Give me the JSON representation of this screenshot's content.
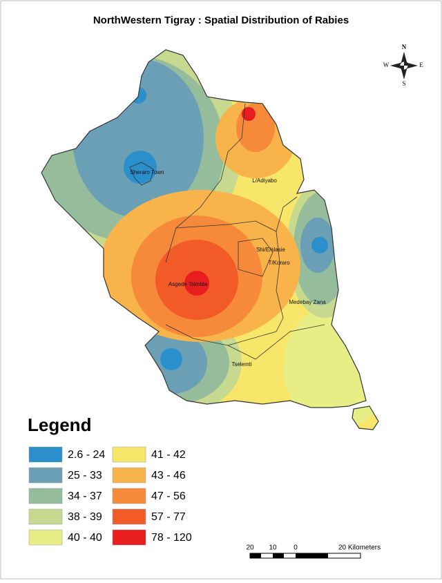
{
  "title": "NorthWestern Tigray : Spatial Distribution of Rabies",
  "compass": {
    "n": "N",
    "e": "E",
    "s": "S",
    "w": "W"
  },
  "places": [
    {
      "label": "Sheraro Town"
    },
    {
      "label": "L/Adiyabo"
    },
    {
      "label": "Shi/E/slasie"
    },
    {
      "label": "T/Koraro"
    },
    {
      "label": "Asgede Tsimbla"
    },
    {
      "label": "Medebay Zana"
    },
    {
      "label": "Tselemti"
    }
  ],
  "legend": {
    "title": "Legend",
    "items": [
      {
        "label": "2.6 - 24",
        "color": "#2b8fcc"
      },
      {
        "label": "25 - 33",
        "color": "#6b9fb5"
      },
      {
        "label": "34 - 37",
        "color": "#95bd9c"
      },
      {
        "label": "38 - 39",
        "color": "#c6d98f"
      },
      {
        "label": "40 - 40",
        "color": "#e6ee85"
      },
      {
        "label": "41 - 42",
        "color": "#f7e66a"
      },
      {
        "label": "43 - 46",
        "color": "#f8b34a"
      },
      {
        "label": "47 - 56",
        "color": "#f68a3a"
      },
      {
        "label": "57 - 77",
        "color": "#f25a28"
      },
      {
        "label": "78 - 120",
        "color": "#e81d1d"
      }
    ]
  },
  "scale_bar": {
    "labels": [
      "20",
      "10",
      "0",
      "20 Kilometers"
    ]
  }
}
